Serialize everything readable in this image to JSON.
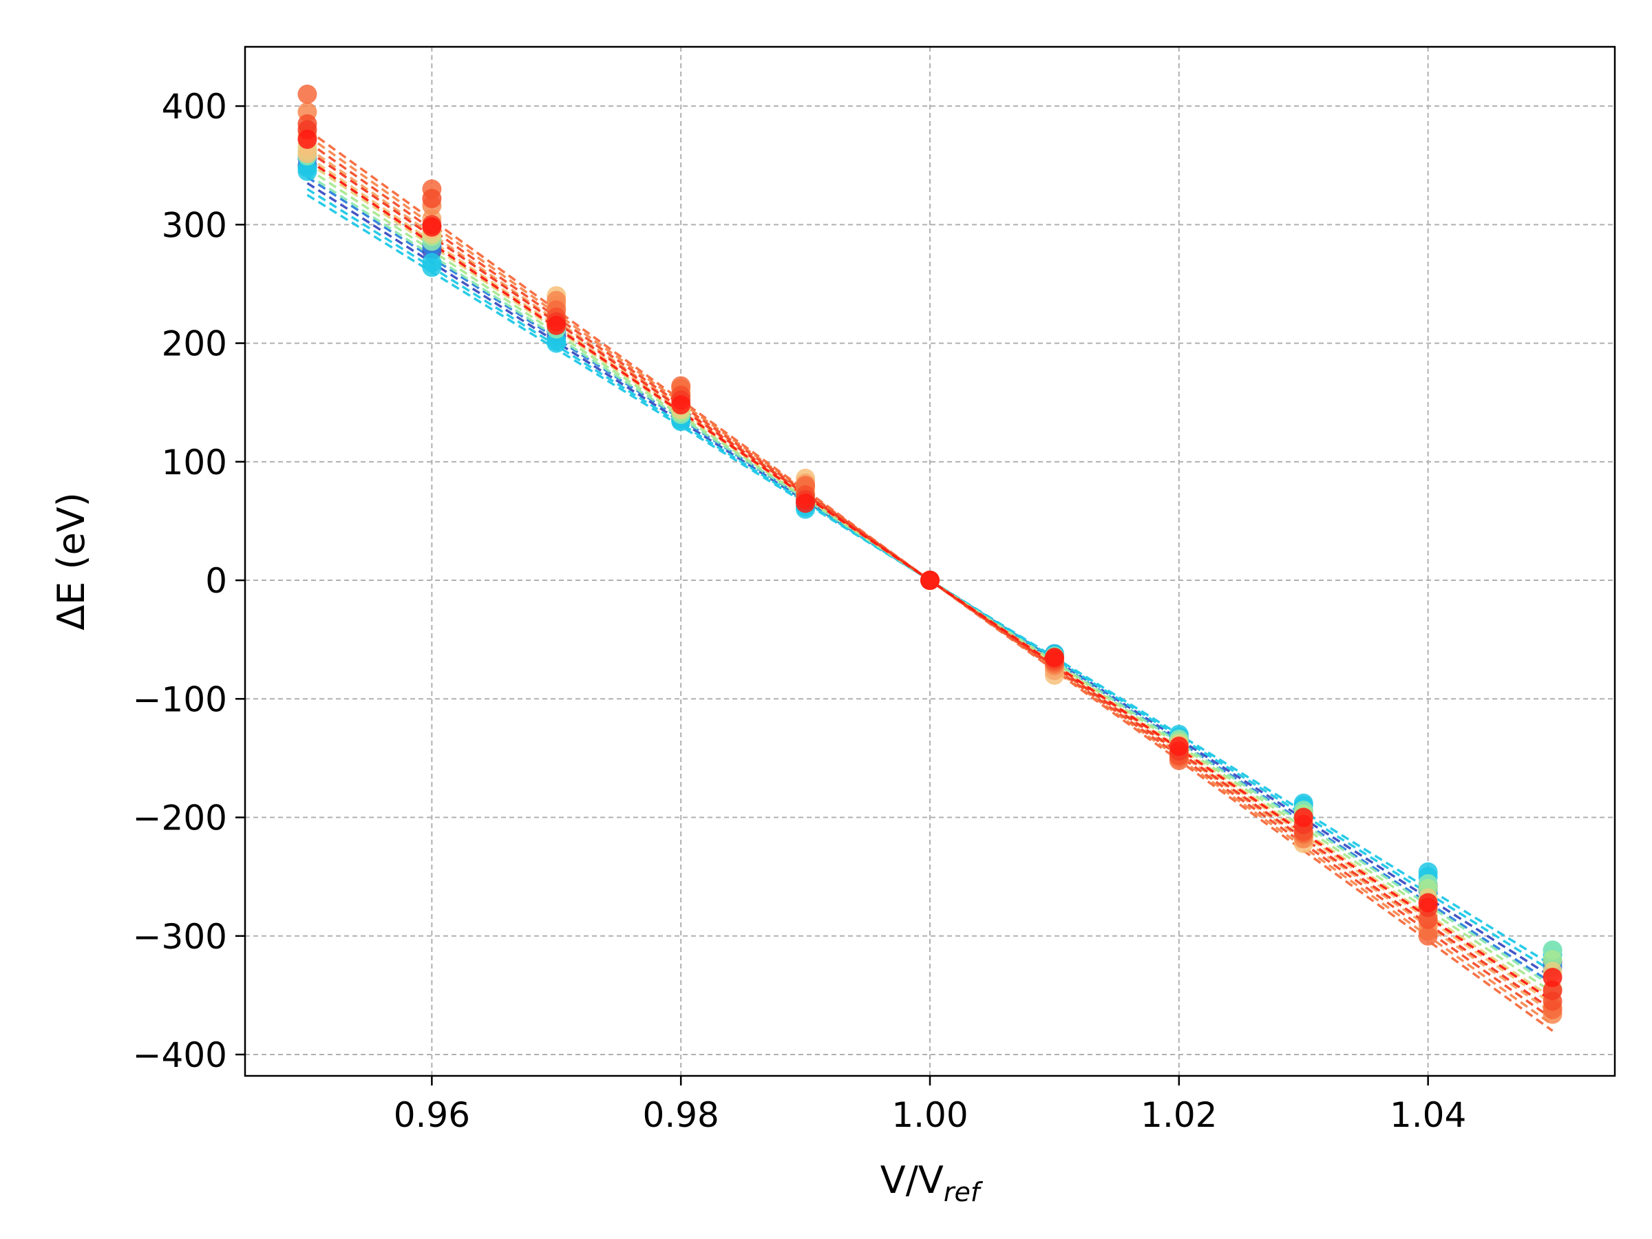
{
  "chart_data": {
    "type": "scatter",
    "title": "",
    "xlabel": "V/V",
    "xlabel_subscript": "ref",
    "ylabel": "ΔE (eV)",
    "xlim": [
      0.945,
      1.055
    ],
    "ylim": [
      -418,
      450
    ],
    "xticks": [
      0.96,
      0.98,
      1.0,
      1.02,
      1.04
    ],
    "xtick_labels": [
      "0.96",
      "0.98",
      "1.00",
      "1.02",
      "1.04"
    ],
    "yticks": [
      -400,
      -300,
      -200,
      -100,
      0,
      100,
      200,
      300,
      400
    ],
    "ytick_labels": [
      "−400",
      "−300",
      "−200",
      "−100",
      "0",
      "100",
      "200",
      "300",
      "400"
    ],
    "grid": true,
    "legend": false,
    "x": [
      0.95,
      0.96,
      0.97,
      0.98,
      0.99,
      1.0,
      1.01,
      1.02,
      1.03,
      1.04,
      1.05
    ],
    "series": [
      {
        "color": "#3b4cc0",
        "values": [
          350,
          278,
          206,
          136,
          66,
          0,
          -62,
          -133,
          -195,
          -258,
          -322
        ],
        "fit_slope": -6700
      },
      {
        "color": "#2c7fe0",
        "values": [
          356,
          282,
          210,
          138,
          68,
          0,
          -64,
          -136,
          -198,
          -262,
          -326
        ],
        "fit_slope": -6800
      },
      {
        "color": "#1ec8e6",
        "values": [
          345,
          264,
          200,
          134,
          60,
          0,
          -62,
          -130,
          -188,
          -246,
          -312
        ],
        "fit_slope": -6500
      },
      {
        "color": "#1ec8e6",
        "values": [
          348,
          268,
          202,
          135,
          62,
          0,
          -63,
          -132,
          -190,
          -250,
          -316
        ],
        "fit_slope": -6600
      },
      {
        "color": "#8de8b0",
        "values": [
          358,
          286,
          212,
          140,
          70,
          0,
          -64,
          -134,
          -194,
          -256,
          -312
        ],
        "fit_slope": -6850
      },
      {
        "color": "#a8e890",
        "values": [
          362,
          290,
          215,
          142,
          72,
          0,
          -66,
          -136,
          -197,
          -260,
          -320
        ],
        "fit_slope": -6950
      },
      {
        "color": "#e8d080",
        "values": [
          366,
          292,
          218,
          144,
          74,
          0,
          -68,
          -138,
          -202,
          -268,
          -330
        ],
        "fit_slope": -7050
      },
      {
        "color": "#f7c07a",
        "values": [
          360,
          296,
          240,
          150,
          86,
          0,
          -80,
          -142,
          -222,
          -282,
          -345
        ],
        "fit_slope": -7150
      },
      {
        "color": "#f8a468",
        "values": [
          375,
          305,
          232,
          158,
          82,
          0,
          -76,
          -146,
          -216,
          -290,
          -360
        ],
        "fit_slope": -7300
      },
      {
        "color": "#f7874f",
        "values": [
          395,
          316,
          236,
          162,
          78,
          0,
          -72,
          -150,
          -218,
          -296,
          -366
        ],
        "fit_slope": -7500
      },
      {
        "color": "#f66a3c",
        "values": [
          410,
          330,
          228,
          164,
          80,
          0,
          -70,
          -152,
          -214,
          -300,
          -362
        ],
        "fit_slope": -7600
      },
      {
        "color": "#f44f2c",
        "values": [
          385,
          322,
          222,
          156,
          72,
          0,
          -68,
          -148,
          -212,
          -286,
          -355
        ],
        "fit_slope": -7400
      },
      {
        "color": "#f33a22",
        "values": [
          380,
          300,
          218,
          152,
          68,
          0,
          -66,
          -144,
          -206,
          -276,
          -346
        ],
        "fit_slope": -7250
      },
      {
        "color": "#ff1a10",
        "values": [
          372,
          298,
          215,
          148,
          65,
          0,
          -65,
          -140,
          -200,
          -272,
          -335
        ],
        "fit_slope": -7100
      }
    ]
  }
}
